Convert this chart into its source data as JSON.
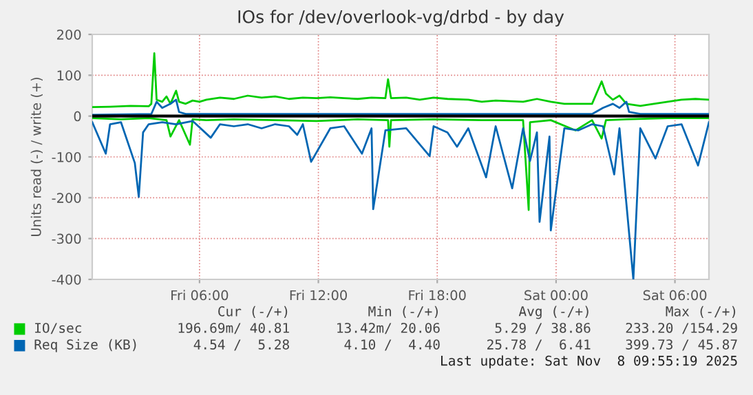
{
  "chart_data": {
    "type": "line",
    "title": "IOs for /dev/overlook-vg/drbd - by day",
    "ylabel": "Units read (-) / write (+)",
    "xlim": [
      "2025-11-07T00:35",
      "2025-11-08T07:43"
    ],
    "xticks": [
      {
        "value": "2025-11-07T06:00",
        "label": "Fri 06:00"
      },
      {
        "value": "2025-11-07T12:00",
        "label": "Fri 12:00"
      },
      {
        "value": "2025-11-07T18:00",
        "label": "Fri 18:00"
      },
      {
        "value": "2025-11-08T00:00",
        "label": "Sat 00:00"
      },
      {
        "value": "2025-11-08T06:00",
        "label": "Sat 06:00"
      }
    ],
    "ylim": [
      -400,
      200
    ],
    "yticks": [
      -400,
      -300,
      -200,
      -100,
      0,
      100,
      200
    ],
    "grid": true,
    "legend": "bottom",
    "line_style": "solid",
    "marker": "none",
    "ref_lines": [
      {
        "axis": "y",
        "value": 0,
        "color": "#000000"
      }
    ],
    "series": [
      {
        "name": "IO/sec",
        "color": "#00cc00",
        "x": [
          "2025-11-07T00:35",
          "2025-11-07T01:29",
          "2025-11-07T02:31",
          "2025-11-07T03:26",
          "2025-11-07T03:34",
          "2025-11-07T03:43",
          "2025-11-07T03:50",
          "2025-11-07T04:07",
          "2025-11-07T04:20",
          "2025-11-07T04:32",
          "2025-11-07T04:49",
          "2025-11-07T04:58",
          "2025-11-07T05:18",
          "2025-11-07T05:39",
          "2025-11-07T06:00",
          "2025-11-07T06:21",
          "2025-11-07T07:02",
          "2025-11-07T07:44",
          "2025-11-07T08:26",
          "2025-11-07T09:08",
          "2025-11-07T09:49",
          "2025-11-07T10:31",
          "2025-11-07T11:13",
          "2025-11-07T11:55",
          "2025-11-07T12:36",
          "2025-11-07T13:18",
          "2025-11-07T13:59",
          "2025-11-07T14:41",
          "2025-11-07T15:23",
          "2025-11-07T15:31",
          "2025-11-07T15:40",
          "2025-11-07T16:26",
          "2025-11-07T17:07",
          "2025-11-07T17:49",
          "2025-11-07T18:31",
          "2025-11-07T19:34",
          "2025-11-07T20:15",
          "2025-11-07T20:57",
          "2025-11-07T22:20",
          "2025-11-07T23:02",
          "2025-11-07T23:44",
          "2025-11-08T00:25",
          "2025-11-08T01:07",
          "2025-11-08T01:49",
          "2025-11-08T02:18",
          "2025-11-08T02:31",
          "2025-11-08T02:52",
          "2025-11-08T03:12",
          "2025-11-08T03:33",
          "2025-11-08T04:15",
          "2025-11-08T04:56",
          "2025-11-08T05:38",
          "2025-11-08T06:20",
          "2025-11-08T07:02",
          "2025-11-08T07:43"
        ],
        "values": [
          22,
          23,
          25,
          24,
          30,
          154,
          40,
          35,
          48,
          30,
          62,
          35,
          30,
          38,
          35,
          40,
          45,
          42,
          50,
          45,
          48,
          42,
          45,
          44,
          46,
          44,
          42,
          45,
          44,
          90,
          44,
          45,
          40,
          45,
          42,
          40,
          35,
          38,
          35,
          42,
          35,
          30,
          30,
          30,
          85,
          55,
          40,
          50,
          30,
          25,
          30,
          35,
          40,
          42,
          40
        ]
      },
      {
        "color": "#00cc00",
        "x": [
          "2025-11-07T00:35",
          "2025-11-07T02:02",
          "2025-11-07T03:26",
          "2025-11-07T04:20",
          "2025-11-07T04:32",
          "2025-11-07T04:58",
          "2025-11-07T05:31",
          "2025-11-07T05:39",
          "2025-11-07T06:21",
          "2025-11-07T07:44",
          "2025-11-07T09:49",
          "2025-11-07T11:55",
          "2025-11-07T13:59",
          "2025-11-07T15:31",
          "2025-11-07T15:35",
          "2025-11-07T15:40",
          "2025-11-07T17:49",
          "2025-11-07T20:15",
          "2025-11-07T22:20",
          "2025-11-07T22:37",
          "2025-11-07T22:41",
          "2025-11-07T23:44",
          "2025-11-08T00:59",
          "2025-11-08T01:49",
          "2025-11-08T02:18",
          "2025-11-08T02:31",
          "2025-11-08T03:33",
          "2025-11-08T05:38",
          "2025-11-08T07:43"
        ],
        "values": [
          -5,
          -8,
          -5,
          -10,
          -50,
          -10,
          -70,
          -8,
          -10,
          -8,
          -10,
          -12,
          -8,
          -10,
          -75,
          -10,
          -8,
          -10,
          -10,
          -230,
          -15,
          -10,
          -35,
          -10,
          -55,
          -10,
          -8,
          -5,
          -5
        ]
      },
      {
        "name": "Req Size (KB)",
        "color": "#0066b3",
        "x": [
          "2025-11-07T00:35",
          "2025-11-07T03:34",
          "2025-11-07T03:50",
          "2025-11-07T04:07",
          "2025-11-07T04:32",
          "2025-11-07T04:49",
          "2025-11-07T04:58",
          "2025-11-07T05:18",
          "2025-11-07T06:00",
          "2025-11-07T10:00",
          "2025-11-07T15:00",
          "2025-11-07T20:00",
          "2025-11-08T01:49",
          "2025-11-08T02:22",
          "2025-11-08T02:52",
          "2025-11-08T03:12",
          "2025-11-08T03:33",
          "2025-11-08T03:41",
          "2025-11-08T04:15",
          "2025-11-08T07:43"
        ],
        "values": [
          3,
          5,
          35,
          20,
          30,
          40,
          10,
          5,
          5,
          5,
          5,
          5,
          5,
          20,
          30,
          20,
          35,
          10,
          5,
          5
        ]
      },
      {
        "color": "#0066b3",
        "x": [
          "2025-11-07T00:35",
          "2025-11-07T01:16",
          "2025-11-07T01:29",
          "2025-11-07T02:02",
          "2025-11-07T02:44",
          "2025-11-07T02:56",
          "2025-11-07T03:09",
          "2025-11-07T03:26",
          "2025-11-07T04:07",
          "2025-11-07T04:49",
          "2025-11-07T05:39",
          "2025-11-07T06:34",
          "2025-11-07T07:02",
          "2025-11-07T07:44",
          "2025-11-07T08:26",
          "2025-11-07T09:08",
          "2025-11-07T09:49",
          "2025-11-07T10:31",
          "2025-11-07T10:56",
          "2025-11-07T11:13",
          "2025-11-07T11:38",
          "2025-11-07T12:36",
          "2025-11-07T13:18",
          "2025-11-07T14:12",
          "2025-11-07T14:41",
          "2025-11-07T14:46",
          "2025-11-07T15:23",
          "2025-11-07T16:26",
          "2025-11-07T17:37",
          "2025-11-07T17:49",
          "2025-11-07T18:31",
          "2025-11-07T19:00",
          "2025-11-07T19:34",
          "2025-11-07T20:28",
          "2025-11-07T20:57",
          "2025-11-07T21:47",
          "2025-11-07T22:20",
          "2025-11-07T22:41",
          "2025-11-07T23:02",
          "2025-11-07T23:10",
          "2025-11-07T23:40",
          "2025-11-07T23:44",
          "2025-11-08T00:25",
          "2025-11-08T01:07",
          "2025-11-08T01:49",
          "2025-11-08T02:22",
          "2025-11-08T02:56",
          "2025-11-08T03:12",
          "2025-11-08T03:54",
          "2025-11-08T04:15",
          "2025-11-08T05:01",
          "2025-11-08T05:38",
          "2025-11-08T06:20",
          "2025-11-08T07:10",
          "2025-11-08T07:43"
        ],
        "values": [
          -15,
          -92,
          -20,
          -15,
          -115,
          -198,
          -40,
          -20,
          -15,
          -20,
          -12,
          -53,
          -20,
          -25,
          -20,
          -30,
          -20,
          -25,
          -46,
          -20,
          -112,
          -30,
          -25,
          -92,
          -30,
          -228,
          -35,
          -30,
          -98,
          -25,
          -40,
          -75,
          -30,
          -150,
          -25,
          -177,
          -30,
          -110,
          -40,
          -259,
          -50,
          -280,
          -30,
          -35,
          -20,
          -25,
          -143,
          -30,
          -400,
          -30,
          -104,
          -25,
          -20,
          -121,
          -15
        ]
      }
    ],
    "annotations": [
      "Cur (-/+)",
      "Min (-/+)",
      "Avg (-/+)",
      "Max (-/+)",
      "196.69m/ 40.81",
      "13.42m/ 20.06",
      "5.29 / 38.86",
      "233.20 /154.29",
      "4.54 /  5.28",
      "4.10 /  4.40",
      "25.78 /  6.41",
      "399.73 / 45.87",
      "Last update: Sat Nov  8 09:55:19 2025"
    ]
  }
}
